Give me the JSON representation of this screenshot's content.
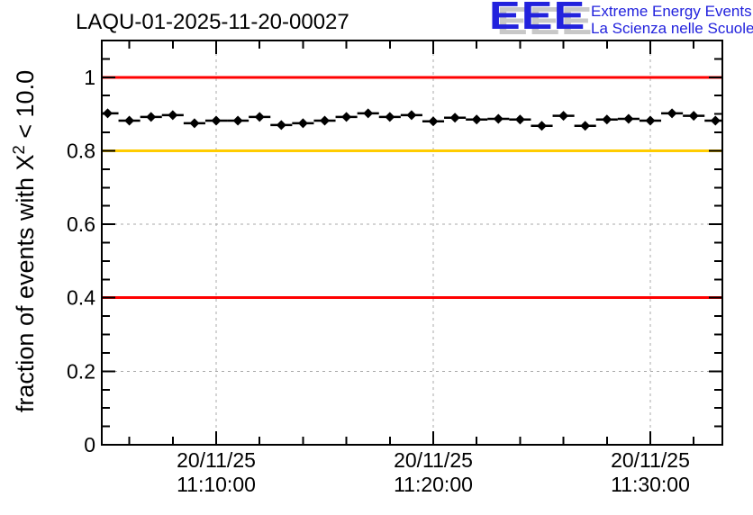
{
  "header": {
    "logo": {
      "acronym": "EEE",
      "line1": "Extreme Energy Events",
      "line2": "La Scienza nelle Scuole",
      "blue": "#2222dd",
      "shadow_gray": "#c8c8c8"
    }
  },
  "chart_data": {
    "type": "scatter",
    "title": "LAQU-01-2025-11-20-00027",
    "ylabel": "fraction of events with X^2 < 10.0",
    "ylabel_parts": {
      "pre": "fraction of events with X",
      "sup": "2",
      "post": " < 10.0"
    },
    "ylim": [
      0,
      1.1
    ],
    "y_major_ticks": [
      {
        "v": 0,
        "label": "0"
      },
      {
        "v": 0.2,
        "label": "0.2"
      },
      {
        "v": 0.4,
        "label": "0.4"
      },
      {
        "v": 0.6,
        "label": "0.6"
      },
      {
        "v": 0.8,
        "label": "0.8"
      },
      {
        "v": 1,
        "label": "1"
      }
    ],
    "y_minor_step": 0.05,
    "x_axis_note": "minutes after 11:00:00 on 20/11/25",
    "xlim_minutes": [
      4.73,
      33.32
    ],
    "x_major_ticks": [
      {
        "minute": 10,
        "label_date": "20/11/25",
        "label_time": "11:10:00"
      },
      {
        "minute": 20,
        "label_date": "20/11/25",
        "label_time": "11:20:00"
      },
      {
        "minute": 30,
        "label_date": "20/11/25",
        "label_time": "11:30:00"
      }
    ],
    "x_minor_step_minutes": 2,
    "grid": {
      "on": true,
      "color": "#a8a8a8",
      "dash": "3,4"
    },
    "reference_lines": [
      {
        "y": 1.0,
        "color": "#ff0000"
      },
      {
        "y": 0.8,
        "color": "#ffcc00"
      },
      {
        "y": 0.4,
        "color": "#ff0000"
      }
    ],
    "series": [
      {
        "name": "fraction of events with chi2 < 10",
        "marker": "diamond",
        "color": "#000000",
        "xerr_minutes": 0.5,
        "x_start_minute": 5,
        "x_step_minutes": 1,
        "points": [
          {
            "t": "11:05:00",
            "v": 0.902
          },
          {
            "t": "11:06:00",
            "v": 0.882
          },
          {
            "t": "11:07:00",
            "v": 0.892
          },
          {
            "t": "11:08:00",
            "v": 0.897
          },
          {
            "t": "11:09:00",
            "v": 0.875
          },
          {
            "t": "11:10:00",
            "v": 0.882
          },
          {
            "t": "11:11:00",
            "v": 0.882
          },
          {
            "t": "11:12:00",
            "v": 0.892
          },
          {
            "t": "11:13:00",
            "v": 0.87
          },
          {
            "t": "11:14:00",
            "v": 0.875
          },
          {
            "t": "11:15:00",
            "v": 0.882
          },
          {
            "t": "11:16:00",
            "v": 0.892
          },
          {
            "t": "11:17:00",
            "v": 0.902
          },
          {
            "t": "11:18:00",
            "v": 0.892
          },
          {
            "t": "11:19:00",
            "v": 0.897
          },
          {
            "t": "11:20:00",
            "v": 0.88
          },
          {
            "t": "11:21:00",
            "v": 0.89
          },
          {
            "t": "11:22:00",
            "v": 0.885
          },
          {
            "t": "11:23:00",
            "v": 0.887
          },
          {
            "t": "11:24:00",
            "v": 0.885
          },
          {
            "t": "11:25:00",
            "v": 0.868
          },
          {
            "t": "11:26:00",
            "v": 0.895
          },
          {
            "t": "11:27:00",
            "v": 0.868
          },
          {
            "t": "11:28:00",
            "v": 0.885
          },
          {
            "t": "11:29:00",
            "v": 0.887
          },
          {
            "t": "11:30:00",
            "v": 0.882
          },
          {
            "t": "11:31:00",
            "v": 0.902
          },
          {
            "t": "11:32:00",
            "v": 0.895
          },
          {
            "t": "11:33:00",
            "v": 0.882
          }
        ]
      }
    ]
  }
}
